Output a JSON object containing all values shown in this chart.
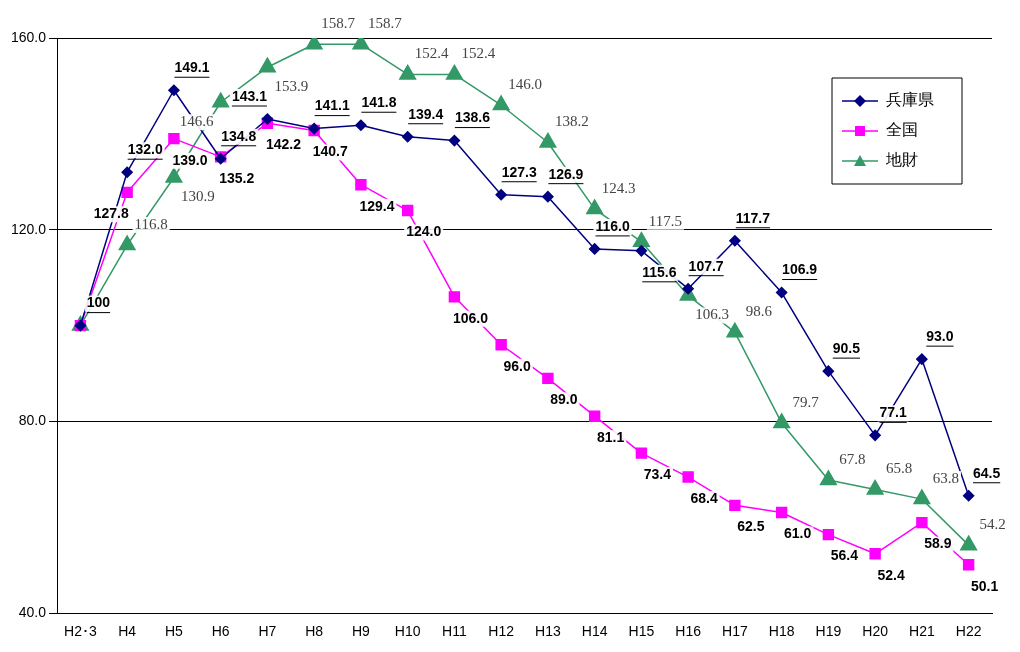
{
  "chart_data": {
    "type": "line",
    "categories": [
      "H2･3",
      "H4",
      "H5",
      "H6",
      "H7",
      "H8",
      "H9",
      "H10",
      "H11",
      "H12",
      "H13",
      "H14",
      "H15",
      "H16",
      "H17",
      "H18",
      "H19",
      "H20",
      "H21",
      "H22"
    ],
    "series": [
      {
        "name": "兵庫県",
        "color": "#000080",
        "marker": "diamond",
        "values": [
          100,
          132.0,
          149.1,
          134.8,
          143.1,
          141.1,
          141.8,
          139.4,
          138.6,
          127.3,
          126.9,
          116.0,
          115.6,
          107.7,
          117.7,
          106.9,
          90.5,
          77.1,
          93.0,
          64.5
        ],
        "value_labels": [
          "100",
          "132.0",
          "149.1",
          "134.8",
          "143.1",
          "141.1",
          "141.8",
          "139.4",
          "138.6",
          "127.3",
          "126.9",
          "116.0",
          "115.6",
          "107.7",
          "117.7",
          "106.9",
          "90.5",
          "77.1",
          "93.0",
          "64.5"
        ]
      },
      {
        "name": "全国",
        "color": "#ff00ff",
        "marker": "square",
        "values": [
          100,
          127.8,
          139.0,
          135.2,
          142.2,
          140.7,
          129.4,
          124.0,
          106.0,
          96.0,
          89.0,
          81.1,
          73.4,
          68.4,
          62.5,
          61.0,
          56.4,
          52.4,
          58.9,
          50.1
        ],
        "value_labels": [
          null,
          "127.8",
          "139.0",
          "135.2",
          "142.2",
          "140.7",
          "129.4",
          "124.0",
          "106.0",
          "96.0",
          "89.0",
          "81.1",
          "73.4",
          "68.4",
          "62.5",
          "61.0",
          "56.4",
          "52.4",
          "58.9",
          "50.1"
        ]
      },
      {
        "name": "地財",
        "color": "#339966",
        "marker": "triangle",
        "values": [
          100,
          116.8,
          130.9,
          146.6,
          153.9,
          158.7,
          158.7,
          152.4,
          152.4,
          146.0,
          138.2,
          124.3,
          117.5,
          106.3,
          98.6,
          79.7,
          67.8,
          65.8,
          63.8,
          54.2
        ],
        "value_labels": [
          null,
          "116.8",
          "130.9",
          "146.6",
          "153.9",
          "158.7",
          "158.7",
          "152.4",
          "152.4",
          "146.0",
          "138.2",
          "124.3",
          "117.5",
          "106.3",
          "98.6",
          "79.7",
          "67.8",
          "65.8",
          "63.8",
          "54.2"
        ]
      }
    ],
    "ylim": [
      40,
      160
    ],
    "yticks": [
      {
        "value": 40,
        "label": "40.0"
      },
      {
        "value": 80,
        "label": "80.0"
      },
      {
        "value": 120,
        "label": "120.0"
      },
      {
        "value": 160,
        "label": "160.0"
      }
    ],
    "grid": "y",
    "legend": "top right",
    "line_style": "solid"
  }
}
